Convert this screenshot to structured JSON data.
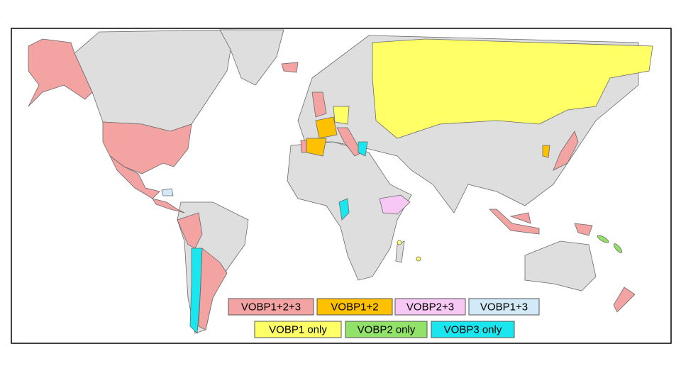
{
  "legend": {
    "items": [
      {
        "label": "VOBP1+2+3",
        "color": "#f4a3a3"
      },
      {
        "label": "VOBP1+2",
        "color": "#ffc000"
      },
      {
        "label": "VOBP2+3",
        "color": "#f8c8f4"
      },
      {
        "label": "VOBP1+3",
        "color": "#d2e9f7"
      },
      {
        "label": "VOBP1 only",
        "color": "#ffff66"
      },
      {
        "label": "VOBP2 only",
        "color": "#92e26a"
      },
      {
        "label": "VOBP3 only",
        "color": "#19e6ef"
      }
    ]
  }
}
